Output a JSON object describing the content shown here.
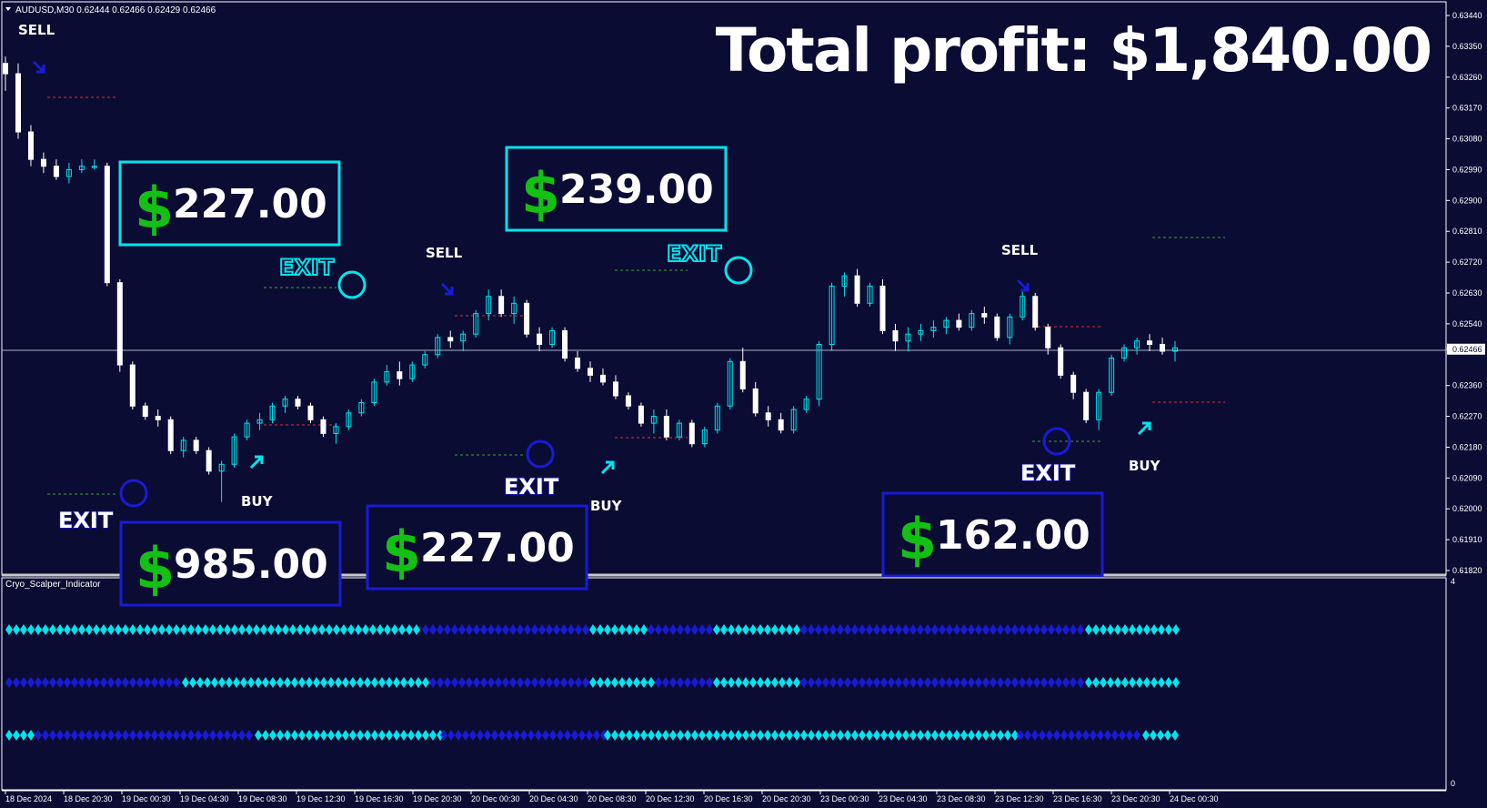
{
  "window": {
    "symbol_title": "AUDUSD,M30  0.62444 0.62466 0.62429 0.62466",
    "indicator_title": "Cryo_Scalper_Indicator",
    "total_profit_label": "Total profit: $1,840.00"
  },
  "colors": {
    "background": "#0b0c33",
    "bull_candle": "#00e5ee",
    "bear_candle": "#ffffff",
    "buy_accent": "#00e5ee",
    "sell_accent": "#1a1ad6",
    "profit_dollar": "#13c013",
    "exit_cyan": "#00e5ee",
    "exit_blue": "#1a1ad6"
  },
  "price_axis": {
    "ticks": [
      "0.63440",
      "0.63350",
      "0.63260",
      "0.63170",
      "0.63080",
      "0.62990",
      "0.62900",
      "0.62810",
      "0.62720",
      "0.62630",
      "0.62540",
      "0.62466",
      "0.62360",
      "0.62270",
      "0.62180",
      "0.62090",
      "0.62000",
      "0.61910",
      "0.61820"
    ],
    "current_price": "0.62466"
  },
  "time_axis": {
    "ticks": [
      "18 Dec 2024",
      "18 Dec 20:30",
      "19 Dec 00:30",
      "19 Dec 04:30",
      "19 Dec 08:30",
      "19 Dec 12:30",
      "19 Dec 16:30",
      "19 Dec 20:30",
      "20 Dec 00:30",
      "20 Dec 04:30",
      "20 Dec 08:30",
      "20 Dec 12:30",
      "20 Dec 16:30",
      "20 Dec 20:30",
      "23 Dec 00:30",
      "23 Dec 04:30",
      "23 Dec 08:30",
      "23 Dec 12:30",
      "23 Dec 16:30",
      "23 Dec 20:30",
      "24 Dec 00:30"
    ]
  },
  "indicator_axis": {
    "max": "4",
    "min": "0"
  },
  "signals": [
    {
      "type": "SELL",
      "label": "SELL",
      "arrow": "sell-arrow"
    },
    {
      "type": "BUY",
      "label": "BUY",
      "arrow": "buy-arrow"
    },
    {
      "type": "SELL",
      "label": "SELL",
      "arrow": "sell-arrow"
    },
    {
      "type": "BUY",
      "label": "BUY",
      "arrow": "buy-arrow"
    },
    {
      "type": "SELL",
      "label": "SELL",
      "arrow": "sell-arrow"
    },
    {
      "type": "BUY",
      "label": "BUY",
      "arrow": "buy-arrow"
    }
  ],
  "exits": [
    {
      "label": "EXIT",
      "style": "blue"
    },
    {
      "label": "EXIT",
      "style": "cyan"
    },
    {
      "label": "EXIT",
      "style": "blue"
    },
    {
      "label": "EXIT",
      "style": "cyan"
    },
    {
      "label": "EXIT",
      "style": "blue"
    }
  ],
  "profit_boxes": [
    {
      "dollar": "$",
      "amount": "227.00",
      "border": "cyan"
    },
    {
      "dollar": "$",
      "amount": "239.00",
      "border": "cyan"
    },
    {
      "dollar": "$",
      "amount": "985.00",
      "border": "blue"
    },
    {
      "dollar": "$",
      "amount": "227.00",
      "border": "blue"
    },
    {
      "dollar": "$",
      "amount": "162.00",
      "border": "blue"
    }
  ],
  "chart_data": {
    "type": "candlestick",
    "title": "AUDUSD,M30",
    "ylim": [
      0.618,
      0.6346
    ],
    "ohlc_approx": [
      [
        0.633,
        0.6332,
        0.6322,
        0.6327
      ],
      [
        0.6327,
        0.633,
        0.6308,
        0.631
      ],
      [
        0.631,
        0.6312,
        0.63,
        0.6302
      ],
      [
        0.6302,
        0.6304,
        0.6298,
        0.63
      ],
      [
        0.63,
        0.6302,
        0.6296,
        0.6297
      ],
      [
        0.6297,
        0.6301,
        0.6295,
        0.6299
      ],
      [
        0.6299,
        0.6302,
        0.6298,
        0.63
      ],
      [
        0.63,
        0.6302,
        0.6299,
        0.63
      ],
      [
        0.63,
        0.6301,
        0.6265,
        0.6266
      ],
      [
        0.6266,
        0.6267,
        0.624,
        0.6242
      ],
      [
        0.6242,
        0.6243,
        0.6229,
        0.623
      ],
      [
        0.623,
        0.6231,
        0.6226,
        0.6227
      ],
      [
        0.6227,
        0.6229,
        0.6224,
        0.6226
      ],
      [
        0.6226,
        0.6227,
        0.6216,
        0.6217
      ],
      [
        0.6217,
        0.6221,
        0.6215,
        0.622
      ],
      [
        0.622,
        0.6221,
        0.6216,
        0.6217
      ],
      [
        0.6217,
        0.6218,
        0.621,
        0.6211
      ],
      [
        0.6211,
        0.6214,
        0.6202,
        0.6213
      ],
      [
        0.6213,
        0.6222,
        0.6212,
        0.6221
      ],
      [
        0.6221,
        0.6226,
        0.622,
        0.6225
      ],
      [
        0.6225,
        0.6228,
        0.6223,
        0.6226
      ],
      [
        0.6226,
        0.6231,
        0.6225,
        0.623
      ],
      [
        0.623,
        0.6233,
        0.6228,
        0.6232
      ],
      [
        0.6232,
        0.6233,
        0.6229,
        0.623
      ],
      [
        0.623,
        0.6231,
        0.6225,
        0.6226
      ],
      [
        0.6226,
        0.6227,
        0.6221,
        0.6222
      ],
      [
        0.6222,
        0.6225,
        0.6219,
        0.6224
      ],
      [
        0.6224,
        0.6229,
        0.6223,
        0.6228
      ],
      [
        0.6228,
        0.6232,
        0.6227,
        0.6231
      ],
      [
        0.6231,
        0.6238,
        0.623,
        0.6237
      ],
      [
        0.6237,
        0.6242,
        0.6236,
        0.624
      ],
      [
        0.624,
        0.6243,
        0.6236,
        0.6238
      ],
      [
        0.6238,
        0.6243,
        0.6237,
        0.6242
      ],
      [
        0.6242,
        0.6246,
        0.6241,
        0.6245
      ],
      [
        0.6245,
        0.6251,
        0.6244,
        0.625
      ],
      [
        0.625,
        0.6252,
        0.6247,
        0.6249
      ],
      [
        0.6249,
        0.6252,
        0.6246,
        0.6251
      ],
      [
        0.6251,
        0.6258,
        0.625,
        0.6257
      ],
      [
        0.6257,
        0.6264,
        0.6255,
        0.6262
      ],
      [
        0.6262,
        0.6264,
        0.6256,
        0.6257
      ],
      [
        0.6257,
        0.6262,
        0.6254,
        0.626
      ],
      [
        0.626,
        0.6261,
        0.625,
        0.6251
      ],
      [
        0.6251,
        0.6253,
        0.6246,
        0.6248
      ],
      [
        0.6248,
        0.6253,
        0.6247,
        0.6252
      ],
      [
        0.6252,
        0.6253,
        0.6243,
        0.6244
      ],
      [
        0.6244,
        0.6246,
        0.624,
        0.6241
      ],
      [
        0.6241,
        0.6243,
        0.6237,
        0.6239
      ],
      [
        0.6239,
        0.6241,
        0.6236,
        0.6237
      ],
      [
        0.6237,
        0.6239,
        0.6232,
        0.6233
      ],
      [
        0.6233,
        0.6234,
        0.6229,
        0.623
      ],
      [
        0.623,
        0.6231,
        0.6224,
        0.6225
      ],
      [
        0.6225,
        0.6229,
        0.6222,
        0.6227
      ],
      [
        0.6227,
        0.6229,
        0.622,
        0.6221
      ],
      [
        0.6221,
        0.6226,
        0.622,
        0.6225
      ],
      [
        0.6225,
        0.6226,
        0.6218,
        0.6219
      ],
      [
        0.6219,
        0.6224,
        0.6218,
        0.6223
      ],
      [
        0.6223,
        0.6231,
        0.6222,
        0.623
      ],
      [
        0.623,
        0.6244,
        0.6229,
        0.6243
      ],
      [
        0.6243,
        0.6247,
        0.6234,
        0.6235
      ],
      [
        0.6235,
        0.6237,
        0.6227,
        0.6228
      ],
      [
        0.6228,
        0.623,
        0.6224,
        0.6226
      ],
      [
        0.6226,
        0.6228,
        0.6222,
        0.6223
      ],
      [
        0.6223,
        0.623,
        0.6222,
        0.6229
      ],
      [
        0.6229,
        0.6233,
        0.6228,
        0.6232
      ],
      [
        0.6232,
        0.6249,
        0.623,
        0.6248
      ],
      [
        0.6248,
        0.6266,
        0.6246,
        0.6265
      ],
      [
        0.6265,
        0.6269,
        0.6262,
        0.6268
      ],
      [
        0.6268,
        0.627,
        0.6259,
        0.626
      ],
      [
        0.626,
        0.6266,
        0.6259,
        0.6265
      ],
      [
        0.6265,
        0.6267,
        0.6251,
        0.6252
      ],
      [
        0.6252,
        0.6254,
        0.6246,
        0.6249
      ],
      [
        0.6249,
        0.6253,
        0.6246,
        0.6251
      ],
      [
        0.6251,
        0.6254,
        0.6249,
        0.6252
      ],
      [
        0.6252,
        0.6255,
        0.625,
        0.6253
      ],
      [
        0.6253,
        0.6256,
        0.6251,
        0.6255
      ],
      [
        0.6255,
        0.6257,
        0.6252,
        0.6253
      ],
      [
        0.6253,
        0.6258,
        0.6252,
        0.6257
      ],
      [
        0.6257,
        0.6259,
        0.6254,
        0.6256
      ],
      [
        0.6256,
        0.6257,
        0.6249,
        0.625
      ],
      [
        0.625,
        0.6257,
        0.6248,
        0.6256
      ],
      [
        0.6256,
        0.6264,
        0.6255,
        0.6262
      ],
      [
        0.6262,
        0.6263,
        0.6252,
        0.6253
      ],
      [
        0.6253,
        0.6254,
        0.6245,
        0.6247
      ],
      [
        0.6247,
        0.6248,
        0.6238,
        0.6239
      ],
      [
        0.6239,
        0.624,
        0.6232,
        0.6234
      ],
      [
        0.6234,
        0.6235,
        0.6225,
        0.6226
      ],
      [
        0.6226,
        0.6235,
        0.6223,
        0.6234
      ],
      [
        0.6234,
        0.6245,
        0.6233,
        0.6244
      ],
      [
        0.6244,
        0.6248,
        0.6243,
        0.6247
      ],
      [
        0.6247,
        0.625,
        0.6245,
        0.6249
      ],
      [
        0.6249,
        0.6251,
        0.6246,
        0.6248
      ],
      [
        0.6248,
        0.625,
        0.6245,
        0.6246
      ],
      [
        0.6246,
        0.6249,
        0.6243,
        0.6247
      ]
    ]
  }
}
